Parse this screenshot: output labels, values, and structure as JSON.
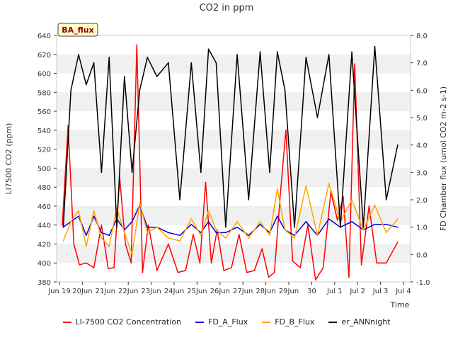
{
  "chart_data": {
    "type": "line",
    "title": "CO2 in ppm",
    "badge": "BA_flux",
    "xlabel": "Time",
    "ylabel_left": "LI7500 CO2 (ppm)",
    "ylabel_right": "FD Chamber flux (umol CO2 m-2 s-1)",
    "ylim_left": [
      380,
      640
    ],
    "ylim_right": [
      -1.0,
      8.0
    ],
    "yticks_left": [
      "380",
      "400",
      "420",
      "440",
      "460",
      "480",
      "500",
      "520",
      "540",
      "560",
      "580",
      "600",
      "620",
      "640"
    ],
    "yticks_right": [
      "-1.0",
      "0.0",
      "1.0",
      "2.0",
      "3.0",
      "4.0",
      "5.0",
      "6.0",
      "7.0",
      "8.0"
    ],
    "x_dates": [
      "Jun 19",
      "Jun 20",
      "Jun 21",
      "Jun 22",
      "Jun 23",
      "Jun 24",
      "Jun 25",
      "Jun 26",
      "Jun 27",
      "Jun 28",
      "Jun 29",
      "Jun 30",
      "Jul 1",
      "Jul 2",
      "Jul 3",
      "Jul 4"
    ],
    "xticks": [
      "Jun 19",
      "20Jun",
      "21Jun",
      "22Jun",
      "23Jun",
      "24Jun",
      "25Jun",
      "26Jun",
      "27Jun",
      "28Jun",
      "29Jun",
      "30",
      "Jul 1",
      "Jul 2",
      "Jul 3",
      "Jul 4"
    ],
    "grid": "horizontal bands",
    "legend_position": "bottom",
    "series": [
      {
        "name": "LI-7500 CO2 Concentration",
        "axis": "left",
        "color": "#ff0000",
        "x": [
          "Jun 19",
          "Jun 19",
          "Jun 19",
          "Jun 19",
          "Jun 20",
          "Jun 20",
          "Jun 20",
          "Jun 21",
          "Jun 21",
          "Jun 21",
          "Jun 21",
          "Jun 22",
          "Jun 22",
          "Jun 22",
          "Jun 22",
          "Jun 23",
          "Jun 23",
          "Jun 24",
          "Jun 24",
          "Jun 24",
          "Jun 25",
          "Jun 25",
          "Jun 25",
          "Jun 25",
          "Jun 26",
          "Jun 26",
          "Jun 26",
          "Jun 27",
          "Jun 27",
          "Jun 27",
          "Jun 28",
          "Jun 28",
          "Jun 28",
          "Jun 28",
          "Jun 29",
          "Jun 29",
          "Jun 29",
          "Jun 30",
          "Jun 30",
          "Jun 30",
          "Jul 1",
          "Jul 1",
          "Jul 1",
          "Jul 1",
          "Jul 2",
          "Jul 2",
          "Jul 2",
          "Jul 3",
          "Jul 3"
        ],
        "y": [
          440,
          545,
          420,
          398,
          400,
          395,
          440,
          394,
          395,
          490,
          420,
          400,
          630,
          390,
          440,
          392,
          420,
          390,
          392,
          430,
          400,
          485,
          400,
          435,
          392,
          395,
          430,
          390,
          392,
          415,
          385,
          390,
          470,
          540,
          402,
          395,
          440,
          382,
          395,
          475,
          445,
          470,
          385,
          610,
          398,
          460,
          400,
          400,
          422
        ]
      },
      {
        "name": "FD_A_Flux",
        "axis": "right",
        "color": "#0000dd",
        "x": [
          "Jun 19",
          "Jun 19",
          "Jun 19",
          "Jun 20",
          "Jun 20",
          "Jun 20",
          "Jun 21",
          "Jun 21",
          "Jun 21",
          "Jun 22",
          "Jun 22",
          "Jun 22",
          "Jun 23",
          "Jun 23",
          "Jun 24",
          "Jun 24",
          "Jun 25",
          "Jun 25",
          "Jun 25",
          "Jun 26",
          "Jun 26",
          "Jun 27",
          "Jun 27",
          "Jun 28",
          "Jun 28",
          "Jun 28",
          "Jun 29",
          "Jun 29",
          "Jun 30",
          "Jun 30",
          "Jul 1",
          "Jul 1",
          "Jul 2",
          "Jul 2",
          "Jul 3",
          "Jul 3"
        ],
        "y": [
          1.0,
          1.2,
          1.4,
          0.7,
          1.4,
          0.8,
          0.7,
          1.3,
          0.9,
          1.2,
          1.8,
          1.0,
          1.0,
          0.8,
          0.7,
          1.1,
          0.8,
          1.2,
          0.8,
          0.8,
          1.0,
          0.7,
          1.1,
          0.8,
          1.4,
          0.9,
          0.7,
          1.2,
          0.7,
          1.3,
          1.0,
          1.2,
          0.9,
          1.1,
          1.1,
          1.0
        ]
      },
      {
        "name": "FD_B_Flux",
        "axis": "right",
        "color": "#ffa500",
        "x": [
          "Jun 19",
          "Jun 19",
          "Jun 19",
          "Jun 20",
          "Jun 20",
          "Jun 20",
          "Jun 21",
          "Jun 21",
          "Jun 21",
          "Jun 22",
          "Jun 22",
          "Jun 22",
          "Jun 23",
          "Jun 23",
          "Jun 24",
          "Jun 24",
          "Jun 25",
          "Jun 25",
          "Jun 25",
          "Jun 26",
          "Jun 26",
          "Jun 27",
          "Jun 27",
          "Jun 28",
          "Jun 28",
          "Jun 28",
          "Jun 29",
          "Jun 29",
          "Jun 30",
          "Jun 30",
          "Jul 1",
          "Jul 1",
          "Jul 2",
          "Jul 2",
          "Jul 3",
          "Jul 3"
        ],
        "y": [
          0.5,
          1.2,
          1.6,
          0.3,
          1.6,
          0.6,
          0.3,
          1.7,
          0.8,
          0.0,
          1.9,
          0.8,
          1.0,
          0.6,
          0.5,
          1.3,
          0.7,
          1.6,
          0.9,
          0.6,
          1.2,
          0.6,
          1.2,
          0.7,
          2.4,
          0.9,
          0.6,
          2.5,
          0.7,
          2.6,
          1.2,
          2.0,
          0.9,
          1.8,
          0.8,
          1.3
        ]
      },
      {
        "name": "er_ANNnight",
        "axis": "right",
        "color": "#000000",
        "x": [
          "Jun 19",
          "Jun 19",
          "Jun 19",
          "Jun 20",
          "Jun 20",
          "Jun 20",
          "Jun 21",
          "Jun 21",
          "Jun 21",
          "Jun 22",
          "Jun 22",
          "Jun 22",
          "Jun 23",
          "Jun 23",
          "Jun 24",
          "Jun 24",
          "Jun 25",
          "Jun 25",
          "Jun 25",
          "Jun 26",
          "Jun 26",
          "Jun 27",
          "Jun 27",
          "Jun 28",
          "Jun 28",
          "Jun 28",
          "Jun 29",
          "Jun 29",
          "Jun 30",
          "Jun 30",
          "Jul 1",
          "Jul 1",
          "Jul 2",
          "Jul 2",
          "Jul 3",
          "Jul 3"
        ],
        "y": [
          1.0,
          6.0,
          7.3,
          6.2,
          7.0,
          3.0,
          7.2,
          1.0,
          6.5,
          3.0,
          6.0,
          7.2,
          6.5,
          7.0,
          2.0,
          7.0,
          3.0,
          7.5,
          7.0,
          1.0,
          7.3,
          2.0,
          7.4,
          3.0,
          7.4,
          6.0,
          1.0,
          7.2,
          5.0,
          7.3,
          1.0,
          7.4,
          1.0,
          7.6,
          2.0,
          4.0
        ]
      }
    ]
  }
}
